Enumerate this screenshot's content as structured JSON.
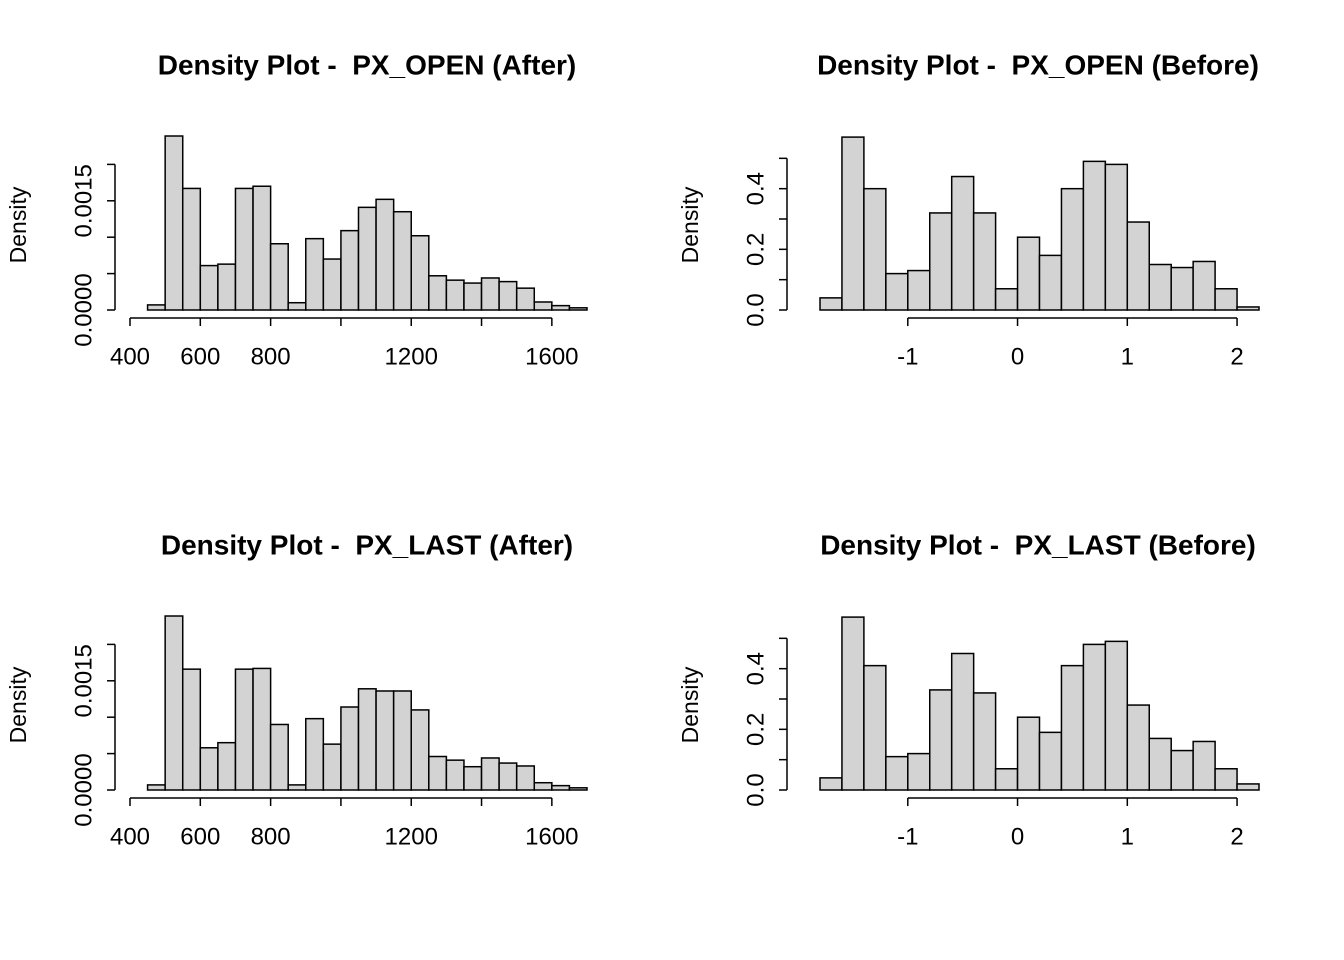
{
  "chart_data": [
    {
      "type": "histogram",
      "title": "Density Plot -  PX_OPEN (After)",
      "y_label": "Density",
      "color": "#d3d3d3",
      "bins": [
        450,
        500,
        550,
        600,
        650,
        700,
        750,
        800,
        850,
        900,
        950,
        1000,
        1050,
        1100,
        1150,
        1200,
        1250,
        1300,
        1350,
        1400,
        1450,
        1500,
        1550,
        1600,
        1650,
        1700
      ],
      "values": [
        7e-05,
        0.00239,
        0.00167,
        0.00061,
        0.00063,
        0.00167,
        0.0017,
        0.00091,
        0.0001,
        0.00098,
        0.0007,
        0.00109,
        0.00141,
        0.00152,
        0.00135,
        0.00102,
        0.00047,
        0.00041,
        0.00037,
        0.00044,
        0.00039,
        0.0003,
        0.00011,
        6e-05,
        3e-05
      ],
      "xlim": [
        400,
        1700
      ],
      "xticks": [
        400,
        600,
        800,
        {
          "value": 1000,
          "label": null
        },
        1200,
        {
          "value": 1400,
          "label": null
        },
        1600
      ],
      "ylim": [
        0,
        0.0025
      ],
      "yticks": [
        {
          "value": 0,
          "label": "0.0000"
        },
        {
          "value": 0.0005,
          "label": null
        },
        {
          "value": 0.001,
          "label": null
        },
        {
          "value": 0.0015,
          "label": "0.0015"
        },
        {
          "value": 0.002,
          "label": null
        }
      ]
    },
    {
      "type": "histogram",
      "title": "Density Plot -  PX_OPEN (Before)",
      "y_label": "Density",
      "color": "#d3d3d3",
      "bins": [
        -1.8,
        -1.6,
        -1.4,
        -1.2,
        -1.0,
        -0.8,
        -0.6,
        -0.4,
        -0.2,
        0,
        0.2,
        0.4,
        0.6,
        0.8,
        1.0,
        1.2,
        1.4,
        1.6,
        1.8,
        2.0,
        2.2
      ],
      "values": [
        0.04,
        0.57,
        0.4,
        0.12,
        0.13,
        0.32,
        0.44,
        0.32,
        0.07,
        0.24,
        0.18,
        0.4,
        0.49,
        0.48,
        0.29,
        0.15,
        0.14,
        0.16,
        0.07,
        0.01
      ],
      "xlim": [
        -1.8,
        2.2
      ],
      "xticks": [
        -1,
        0,
        1,
        2
      ],
      "ylim": [
        0,
        0.6
      ],
      "yticks": [
        {
          "value": 0,
          "label": "0.0"
        },
        {
          "value": 0.1,
          "label": null
        },
        {
          "value": 0.2,
          "label": "0.2"
        },
        {
          "value": 0.3,
          "label": null
        },
        {
          "value": 0.4,
          "label": "0.4"
        },
        {
          "value": 0.5,
          "label": null
        }
      ]
    },
    {
      "type": "histogram",
      "title": "Density Plot -  PX_LAST (After)",
      "y_label": "Density",
      "color": "#d3d3d3",
      "bins": [
        450,
        500,
        550,
        600,
        650,
        700,
        750,
        800,
        850,
        900,
        950,
        1000,
        1050,
        1100,
        1150,
        1200,
        1250,
        1300,
        1350,
        1400,
        1450,
        1500,
        1550,
        1600,
        1650,
        1700
      ],
      "values": [
        7e-05,
        0.00239,
        0.00166,
        0.00058,
        0.00065,
        0.00166,
        0.00167,
        0.0009,
        7e-05,
        0.00098,
        0.00063,
        0.00114,
        0.00139,
        0.00136,
        0.00136,
        0.0011,
        0.00046,
        0.00041,
        0.00032,
        0.00044,
        0.00037,
        0.00033,
        0.0001,
        6e-05,
        3e-05
      ],
      "xlim": [
        400,
        1700
      ],
      "xticks": [
        400,
        600,
        800,
        {
          "value": 1000,
          "label": null
        },
        1200,
        {
          "value": 1400,
          "label": null
        },
        1600
      ],
      "ylim": [
        0,
        0.0025
      ],
      "yticks": [
        {
          "value": 0,
          "label": "0.0000"
        },
        {
          "value": 0.0005,
          "label": null
        },
        {
          "value": 0.001,
          "label": null
        },
        {
          "value": 0.0015,
          "label": "0.0015"
        },
        {
          "value": 0.002,
          "label": null
        }
      ]
    },
    {
      "type": "histogram",
      "title": "Density Plot -  PX_LAST (Before)",
      "y_label": "Density",
      "color": "#d3d3d3",
      "bins": [
        -1.8,
        -1.6,
        -1.4,
        -1.2,
        -1.0,
        -0.8,
        -0.6,
        -0.4,
        -0.2,
        0,
        0.2,
        0.4,
        0.6,
        0.8,
        1.0,
        1.2,
        1.4,
        1.6,
        1.8,
        2.0,
        2.2
      ],
      "values": [
        0.04,
        0.57,
        0.41,
        0.11,
        0.12,
        0.33,
        0.45,
        0.32,
        0.07,
        0.24,
        0.19,
        0.41,
        0.48,
        0.49,
        0.28,
        0.17,
        0.13,
        0.16,
        0.07,
        0.02
      ],
      "xlim": [
        -1.8,
        2.2
      ],
      "xticks": [
        -1,
        0,
        1,
        2
      ],
      "ylim": [
        0,
        0.6
      ],
      "yticks": [
        {
          "value": 0,
          "label": "0.0"
        },
        {
          "value": 0.1,
          "label": null
        },
        {
          "value": 0.2,
          "label": "0.2"
        },
        {
          "value": 0.3,
          "label": null
        },
        {
          "value": 0.4,
          "label": "0.4"
        },
        {
          "value": 0.5,
          "label": null
        }
      ]
    }
  ]
}
